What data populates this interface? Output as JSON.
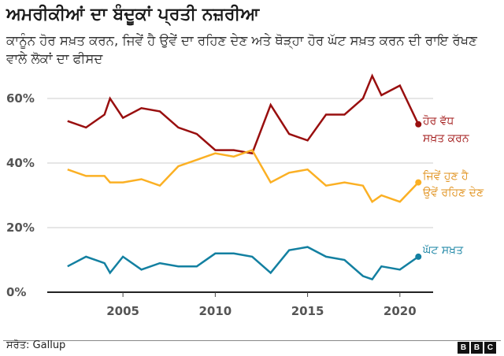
{
  "title": "ਅਮਰੀਕੀਆਂ ਦਾ ਬੰਦੂਕਾਂ ਪ੍ਰਤੀ ਨਜ਼ਰੀਆ",
  "subtitle": "ਕਾਨੂੰਨ ਹੋਰ ਸਖ਼ਤ ਕਰਨ, ਜਿਵੇਂ ਹੈ ਉਵੇਂ ਦਾ ਰਹਿਣ ਦੇਣ ਅਤੇ ਥੋੜ੍ਹਾ ਹੋਰ ਘੱਟ ਸਖ਼ਤ ਕਰਨ ਦੀ ਰਾਇ ਰੱਖਣ ਵਾਲੇ ਲੋਕਾਂ ਦਾ ਫੀਸਦ",
  "source": "ਸਰੋਤ: Gallup",
  "logo": "BBC",
  "chart_data": {
    "type": "line",
    "title": "ਅਮਰੀਕੀਆਂ ਦਾ ਬੰਦੂਕਾਂ ਪ੍ਰਤੀ ਨਜ਼ਰੀਆ",
    "x": [
      2002,
      2003,
      2004,
      2004.3,
      2005,
      2006,
      2007,
      2008,
      2009,
      2010,
      2011,
      2012,
      2013,
      2014,
      2015,
      2016,
      2017,
      2018,
      2018.5,
      2019,
      2020,
      2021
    ],
    "series": [
      {
        "name": "ਹੋਰ ਵੱਧ ਸਖ਼ਤ ਕਰਨ",
        "label_lines": [
          "ਹੋਰ ਵੱਧ",
          "ਸਖ਼ਤ ਕਰਨ"
        ],
        "color": "#990f0f",
        "values": [
          53,
          51,
          55,
          60,
          54,
          57,
          56,
          51,
          49,
          44,
          44,
          43,
          58,
          49,
          47,
          55,
          55,
          60,
          67,
          61,
          64,
          52
        ]
      },
      {
        "name": "ਜਿਵੇਂ ਹੁਣ ਹੈ ਉਵੇਂ ਰਹਿਣ ਦੇਣ",
        "label_lines": [
          "ਜਿਵੇਂ ਹੁਣ ਹੈ",
          "ਉਵੇਂ ਰਹਿਣ ਦੇਣ"
        ],
        "color": "#fbb024",
        "values": [
          38,
          36,
          36,
          34,
          34,
          35,
          33,
          39,
          41,
          43,
          42,
          44,
          34,
          37,
          38,
          33,
          34,
          33,
          28,
          30,
          28,
          34
        ]
      },
      {
        "name": "ਘੱਟ ਸਖ਼ਤ",
        "label_lines": [
          "ਘੱਟ ਸਖ਼ਤ"
        ],
        "color": "#1380a1",
        "values": [
          8,
          11,
          9,
          6,
          11,
          7,
          9,
          8,
          8,
          12,
          12,
          11,
          6,
          13,
          14,
          11,
          10,
          5,
          4,
          8,
          7,
          11
        ]
      }
    ],
    "label_colors": [
      "#a01414",
      "#e0901a",
      "#1380a1"
    ],
    "y_ticks": [
      0,
      20,
      40,
      60
    ],
    "y_tick_labels": [
      "0%",
      "20%",
      "40%",
      "60%"
    ],
    "x_ticks": [
      2005,
      2010,
      2015,
      2020
    ],
    "x_tick_labels": [
      "2005",
      "2010",
      "2015",
      "2020"
    ],
    "ylim": [
      0,
      70
    ],
    "xlim": [
      2000.9,
      2021.8
    ],
    "grid": true,
    "legend": "inline-right"
  }
}
